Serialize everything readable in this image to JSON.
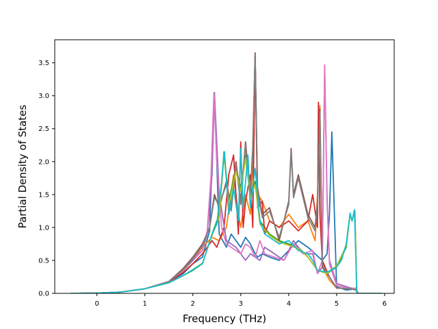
{
  "chart_data": {
    "type": "line",
    "title": "",
    "xlabel": "Frequency (THz)",
    "ylabel": "Partial Density of States",
    "xlim": [
      -0.88,
      6.2
    ],
    "ylim": [
      0,
      3.85
    ],
    "xticks": [
      0,
      1,
      2,
      3,
      4,
      5,
      6
    ],
    "yticks": [
      0.0,
      0.5,
      1.0,
      1.5,
      2.0,
      2.5,
      3.0,
      3.5
    ],
    "xtick_labels": [
      "0",
      "1",
      "2",
      "3",
      "4",
      "5",
      "6"
    ],
    "ytick_labels": [
      "0.0",
      "0.5",
      "1.0",
      "1.5",
      "2.0",
      "2.5",
      "3.0",
      "3.5"
    ],
    "grid": false,
    "legend": false,
    "series": [
      {
        "color": "#1f77b4",
        "x": [
          -0.55,
          0.0,
          0.5,
          1.0,
          1.5,
          1.8,
          2.0,
          2.2,
          2.35,
          2.45,
          2.55,
          2.7,
          2.8,
          2.9,
          3.0,
          3.1,
          3.2,
          3.3,
          3.35,
          3.45,
          3.6,
          3.8,
          4.0,
          4.2,
          4.4,
          4.55,
          4.7,
          4.8,
          4.85,
          4.9,
          5.0,
          5.2,
          5.4,
          5.45,
          5.95
        ],
        "y": [
          0.0,
          0.003,
          0.02,
          0.07,
          0.17,
          0.3,
          0.45,
          0.55,
          0.95,
          3.05,
          0.9,
          0.7,
          0.9,
          0.8,
          0.7,
          0.85,
          0.75,
          0.6,
          0.55,
          0.6,
          0.55,
          0.5,
          0.65,
          0.8,
          0.7,
          0.6,
          0.5,
          0.6,
          1.2,
          2.45,
          0.1,
          0.05,
          0.07,
          0.0,
          0.0
        ]
      },
      {
        "color": "#ff7f0e",
        "x": [
          -0.55,
          0.0,
          0.5,
          1.0,
          1.5,
          1.8,
          2.0,
          2.2,
          2.4,
          2.55,
          2.7,
          2.85,
          2.95,
          3.0,
          3.1,
          3.2,
          3.25,
          3.3,
          3.35,
          3.45,
          3.6,
          3.8,
          4.0,
          4.2,
          4.4,
          4.55,
          4.6,
          4.65,
          4.7,
          4.85,
          5.0,
          5.3,
          5.4,
          5.45,
          5.95
        ],
        "y": [
          0.0,
          0.003,
          0.02,
          0.07,
          0.18,
          0.35,
          0.5,
          0.7,
          0.85,
          0.8,
          1.0,
          1.8,
          1.2,
          1.0,
          1.5,
          1.2,
          1.7,
          3.65,
          1.5,
          1.4,
          1.1,
          1.0,
          1.2,
          1.0,
          1.1,
          0.8,
          1.5,
          2.85,
          0.4,
          0.2,
          0.08,
          0.07,
          0.05,
          0.0,
          0.0
        ]
      },
      {
        "color": "#2ca02c",
        "x": [
          -0.55,
          0.0,
          0.5,
          1.0,
          1.5,
          1.8,
          2.0,
          2.2,
          2.4,
          2.55,
          2.65,
          2.75,
          2.9,
          3.0,
          3.1,
          3.2,
          3.3,
          3.4,
          3.6,
          3.8,
          4.0,
          4.2,
          4.4,
          4.6,
          4.8,
          5.0,
          5.2,
          5.28,
          5.32,
          5.38,
          5.42,
          5.95
        ],
        "y": [
          0.0,
          0.003,
          0.02,
          0.07,
          0.16,
          0.27,
          0.35,
          0.45,
          0.9,
          1.2,
          2.15,
          1.4,
          1.9,
          1.6,
          2.1,
          1.5,
          1.7,
          1.1,
          0.9,
          0.8,
          0.75,
          0.7,
          0.55,
          0.35,
          0.3,
          0.4,
          0.7,
          1.2,
          1.1,
          1.25,
          0.0,
          0.0
        ]
      },
      {
        "color": "#d62728",
        "x": [
          -0.55,
          0.0,
          0.5,
          1.0,
          1.5,
          1.8,
          2.0,
          2.2,
          2.4,
          2.5,
          2.65,
          2.75,
          2.85,
          2.95,
          3.0,
          3.05,
          3.1,
          3.2,
          3.25,
          3.3,
          3.35,
          3.45,
          3.5,
          3.6,
          3.8,
          4.0,
          4.2,
          4.4,
          4.5,
          4.6,
          4.62,
          4.65,
          4.7,
          4.85,
          5.0,
          5.3,
          5.4,
          5.45,
          5.95
        ],
        "y": [
          0.0,
          0.003,
          0.02,
          0.07,
          0.17,
          0.32,
          0.45,
          0.6,
          0.8,
          0.7,
          1.0,
          1.8,
          2.1,
          0.9,
          2.3,
          1.0,
          1.4,
          1.8,
          1.0,
          3.6,
          1.3,
          1.4,
          0.9,
          1.1,
          1.0,
          1.1,
          0.95,
          1.1,
          1.5,
          1.0,
          2.9,
          1.2,
          0.5,
          0.25,
          0.08,
          0.07,
          0.05,
          0.0,
          0.0
        ]
      },
      {
        "color": "#9467bd",
        "x": [
          -0.55,
          0.0,
          0.5,
          1.0,
          1.5,
          1.8,
          2.0,
          2.2,
          2.3,
          2.4,
          2.45,
          2.55,
          2.7,
          2.8,
          2.9,
          3.0,
          3.1,
          3.2,
          3.3,
          3.4,
          3.5,
          3.7,
          3.9,
          4.1,
          4.3,
          4.5,
          4.6,
          4.7,
          4.75,
          4.8,
          4.85,
          5.0,
          5.3,
          5.4,
          5.45,
          5.95
        ],
        "y": [
          0.0,
          0.003,
          0.02,
          0.07,
          0.18,
          0.35,
          0.5,
          0.65,
          0.9,
          1.8,
          3.05,
          1.5,
          0.8,
          0.75,
          0.7,
          0.6,
          0.5,
          0.6,
          0.55,
          0.5,
          0.7,
          0.6,
          0.5,
          0.8,
          0.6,
          0.6,
          0.3,
          0.4,
          3.45,
          1.4,
          0.5,
          0.15,
          0.08,
          0.07,
          0.0,
          0.0
        ]
      },
      {
        "color": "#8c564b",
        "x": [
          -0.55,
          0.0,
          0.5,
          1.0,
          1.5,
          1.8,
          2.0,
          2.2,
          2.35,
          2.45,
          2.55,
          2.7,
          2.8,
          2.9,
          3.0,
          3.1,
          3.2,
          3.25,
          3.3,
          3.35,
          3.45,
          3.6,
          3.8,
          4.0,
          4.05,
          4.1,
          4.2,
          4.4,
          4.55,
          4.6,
          4.65,
          4.7,
          4.85,
          5.0,
          5.3,
          5.4,
          5.45,
          5.95
        ],
        "y": [
          0.0,
          0.003,
          0.02,
          0.07,
          0.18,
          0.38,
          0.55,
          0.75,
          1.0,
          1.5,
          1.3,
          1.7,
          1.3,
          2.0,
          1.4,
          2.3,
          1.5,
          2.2,
          3.65,
          1.6,
          1.2,
          1.3,
          0.8,
          1.4,
          2.2,
          1.5,
          1.8,
          1.2,
          1.0,
          1.4,
          2.8,
          0.4,
          0.25,
          0.08,
          0.07,
          0.05,
          0.0,
          0.0
        ]
      },
      {
        "color": "#e377c2",
        "x": [
          -0.55,
          0.0,
          0.5,
          1.0,
          1.5,
          1.8,
          2.0,
          2.2,
          2.3,
          2.38,
          2.44,
          2.5,
          2.6,
          2.7,
          2.8,
          2.9,
          3.0,
          3.1,
          3.2,
          3.3,
          3.4,
          3.5,
          3.7,
          3.9,
          4.1,
          4.3,
          4.5,
          4.6,
          4.7,
          4.75,
          4.8,
          4.85,
          5.0,
          5.3,
          5.4,
          5.45,
          5.95
        ],
        "y": [
          0.0,
          0.003,
          0.02,
          0.07,
          0.18,
          0.35,
          0.52,
          0.65,
          0.95,
          1.8,
          3.05,
          2.0,
          1.0,
          0.75,
          0.7,
          0.65,
          0.6,
          0.75,
          0.7,
          0.55,
          0.8,
          0.6,
          0.55,
          0.5,
          0.75,
          0.6,
          0.65,
          0.3,
          0.5,
          3.47,
          1.5,
          0.45,
          0.12,
          0.07,
          0.08,
          0.0,
          0.0
        ]
      },
      {
        "color": "#7f7f7f",
        "x": [
          -0.55,
          0.0,
          0.5,
          1.0,
          1.5,
          1.8,
          2.0,
          2.2,
          2.35,
          2.45,
          2.55,
          2.7,
          2.8,
          2.9,
          3.0,
          3.1,
          3.2,
          3.25,
          3.3,
          3.35,
          3.45,
          3.6,
          3.8,
          4.0,
          4.05,
          4.1,
          4.2,
          4.4,
          4.55,
          4.6,
          4.65,
          4.7,
          4.85,
          5.0,
          5.3,
          5.4,
          5.45,
          5.95
        ],
        "y": [
          0.0,
          0.003,
          0.02,
          0.07,
          0.18,
          0.36,
          0.52,
          0.72,
          1.0,
          1.45,
          1.35,
          1.65,
          1.25,
          1.95,
          1.35,
          2.25,
          1.45,
          2.1,
          3.62,
          1.55,
          1.15,
          1.25,
          0.85,
          1.35,
          2.15,
          1.45,
          1.75,
          1.15,
          0.95,
          1.35,
          2.75,
          0.45,
          0.25,
          0.08,
          0.07,
          0.05,
          0.0,
          0.0
        ]
      },
      {
        "color": "#bcbd22",
        "x": [
          -0.55,
          0.0,
          0.5,
          1.0,
          1.5,
          1.8,
          2.0,
          2.2,
          2.4,
          2.55,
          2.65,
          2.75,
          2.9,
          3.0,
          3.1,
          3.2,
          3.3,
          3.4,
          3.6,
          3.8,
          4.0,
          4.2,
          4.4,
          4.6,
          4.8,
          5.0,
          5.2,
          5.28,
          5.32,
          5.38,
          5.42,
          5.95
        ],
        "y": [
          0.0,
          0.003,
          0.02,
          0.07,
          0.16,
          0.27,
          0.36,
          0.46,
          0.88,
          1.15,
          2.1,
          1.35,
          1.85,
          1.55,
          2.05,
          1.45,
          1.65,
          1.05,
          0.88,
          0.78,
          0.73,
          0.68,
          0.55,
          0.35,
          0.3,
          0.42,
          0.72,
          1.2,
          1.1,
          1.25,
          0.0,
          0.0
        ]
      },
      {
        "color": "#17becf",
        "x": [
          -0.55,
          0.0,
          0.5,
          1.0,
          1.5,
          1.8,
          2.0,
          2.2,
          2.4,
          2.5,
          2.6,
          2.66,
          2.75,
          2.85,
          2.95,
          3.0,
          3.05,
          3.15,
          3.2,
          3.3,
          3.4,
          3.5,
          3.6,
          3.8,
          4.0,
          4.2,
          4.4,
          4.5,
          4.6,
          4.8,
          5.0,
          5.1,
          5.2,
          5.28,
          5.32,
          5.37,
          5.42,
          5.95
        ],
        "y": [
          0.0,
          0.003,
          0.02,
          0.07,
          0.16,
          0.27,
          0.36,
          0.45,
          0.9,
          1.05,
          1.7,
          2.15,
          1.2,
          1.6,
          1.1,
          2.2,
          1.3,
          2.1,
          1.3,
          1.9,
          1.1,
          0.9,
          0.85,
          0.75,
          0.8,
          0.65,
          0.6,
          0.5,
          0.35,
          0.32,
          0.4,
          0.5,
          0.75,
          1.22,
          1.1,
          1.27,
          0.0,
          0.0
        ]
      }
    ]
  }
}
